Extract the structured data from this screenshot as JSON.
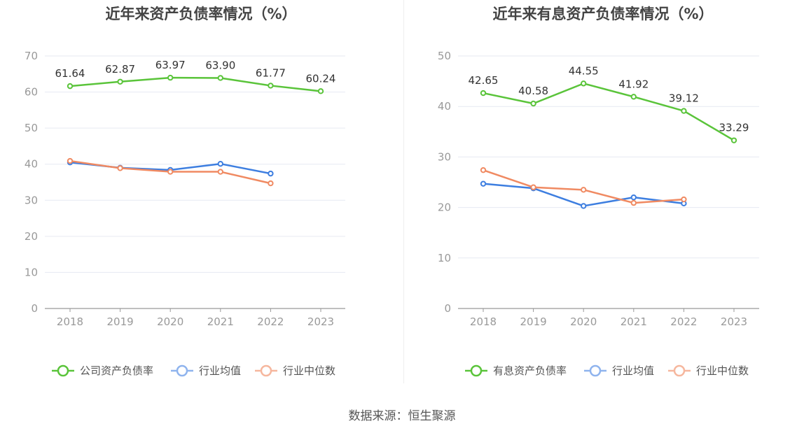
{
  "source": "数据来源：恒生聚源",
  "chart_data": [
    {
      "type": "line",
      "title": "近年来资产负债率情况（%）",
      "x": [
        "2018",
        "2019",
        "2020",
        "2021",
        "2022",
        "2023"
      ],
      "ylim": [
        0,
        70
      ],
      "yticks": [
        0,
        10,
        20,
        30,
        40,
        50,
        60,
        70
      ],
      "grid": true,
      "legend_position": "bottom",
      "series": [
        {
          "name": "公司资产负债率",
          "color": "#5ac43a",
          "values": [
            61.64,
            62.87,
            63.97,
            63.9,
            61.77,
            60.24
          ],
          "labels": [
            "61.64",
            "62.87",
            "63.97",
            "63.90",
            "61.77",
            "60.24"
          ]
        },
        {
          "name": "行业均值",
          "color": "#3d7ee0",
          "values": [
            40.5,
            39.0,
            38.4,
            40.1,
            37.4,
            null
          ]
        },
        {
          "name": "行业中位数",
          "color": "#f08a62",
          "values": [
            40.9,
            38.9,
            37.9,
            37.9,
            34.7,
            null
          ]
        }
      ]
    },
    {
      "type": "line",
      "title": "近年来有息资产负债率情况（%）",
      "x": [
        "2018",
        "2019",
        "2020",
        "2021",
        "2022",
        "2023"
      ],
      "ylim": [
        0,
        50
      ],
      "yticks": [
        0,
        10,
        20,
        30,
        40,
        50
      ],
      "grid": true,
      "legend_position": "bottom",
      "series": [
        {
          "name": "有息资产负债率",
          "color": "#5ac43a",
          "values": [
            42.65,
            40.58,
            44.55,
            41.92,
            39.12,
            33.29
          ],
          "labels": [
            "42.65",
            "40.58",
            "44.55",
            "41.92",
            "39.12",
            "33.29"
          ]
        },
        {
          "name": "行业均值",
          "color": "#3d7ee0",
          "values": [
            24.7,
            23.8,
            20.3,
            22.0,
            20.8,
            null
          ]
        },
        {
          "name": "行业中位数",
          "color": "#f08a62",
          "values": [
            27.4,
            24.0,
            23.5,
            20.9,
            21.6,
            null
          ]
        }
      ]
    }
  ]
}
